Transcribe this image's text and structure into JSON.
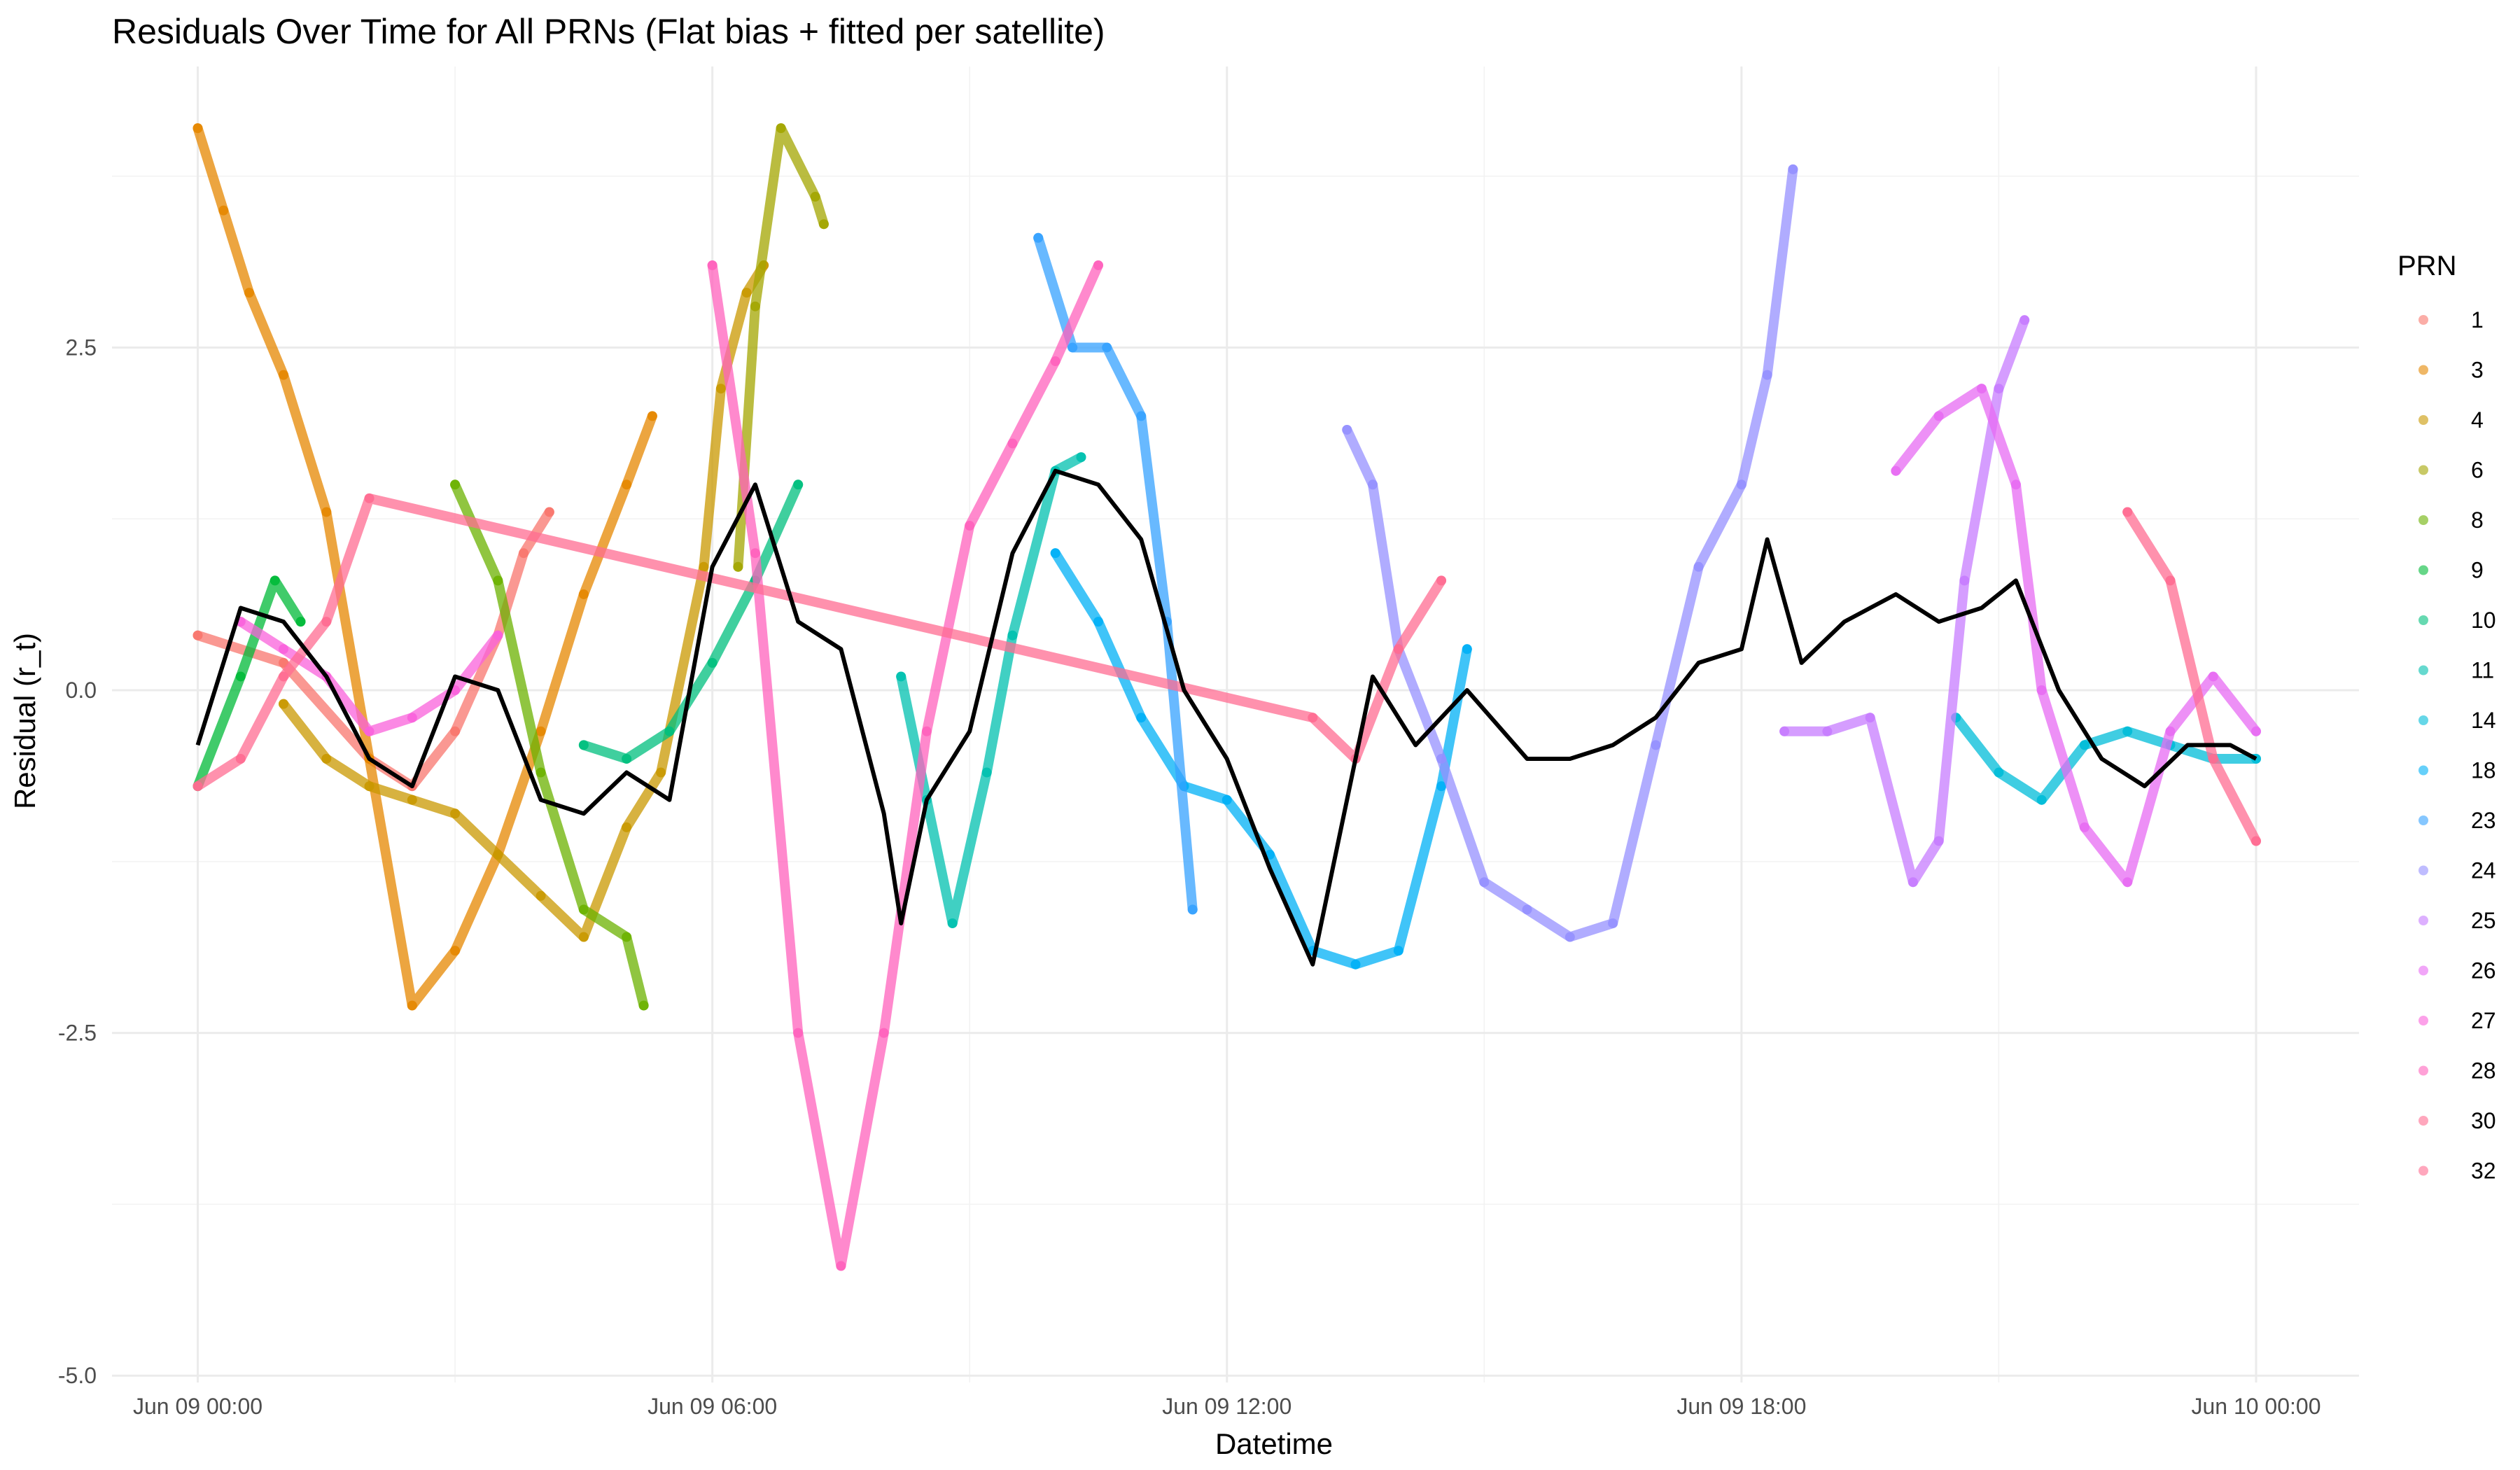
{
  "chart_data": {
    "type": "scatter",
    "title": "Residuals Over Time for All PRNs (Flat bias + fitted per satellite)",
    "xlabel": "Datetime",
    "ylabel": "Residual (r_t)",
    "x_tick_labels": [
      "Jun 09 00:00",
      "Jun 09 06:00",
      "Jun 09 12:00",
      "Jun 09 18:00",
      "Jun 10 00:00"
    ],
    "x_ticks_hours": [
      0,
      6,
      12,
      18,
      24
    ],
    "y_ticks": [
      -5.0,
      -2.5,
      0.0,
      2.5
    ],
    "y_tick_labels": [
      "-5.0",
      "-2.5",
      "0.0",
      "2.5"
    ],
    "xlim_hours": [
      -1,
      25.2
    ],
    "ylim": [
      -5.05,
      4.55
    ],
    "grid": true,
    "legend": {
      "title": "PRN",
      "position": "right"
    },
    "series": [
      {
        "name": "1",
        "color": "#F8766D",
        "points": [
          [
            0,
            0.4
          ],
          [
            1,
            0.2
          ],
          [
            2,
            -0.5
          ],
          [
            2.5,
            -0.7
          ],
          [
            3,
            -0.3
          ],
          [
            3.5,
            0.4
          ],
          [
            3.8,
            1.0
          ],
          [
            4.1,
            1.3
          ]
        ]
      },
      {
        "name": "3",
        "color": "#E58700",
        "points": [
          [
            0,
            4.1
          ],
          [
            0.3,
            3.5
          ],
          [
            0.6,
            2.9
          ],
          [
            1,
            2.3
          ],
          [
            1.5,
            1.3
          ],
          [
            2,
            -0.5
          ],
          [
            2.5,
            -2.3
          ],
          [
            3,
            -1.9
          ],
          [
            3.5,
            -1.2
          ],
          [
            4,
            -0.3
          ],
          [
            4.5,
            0.7
          ],
          [
            5,
            1.5
          ],
          [
            5.3,
            2.0
          ]
        ]
      },
      {
        "name": "4",
        "color": "#C99800",
        "points": [
          [
            1,
            -0.1
          ],
          [
            1.5,
            -0.5
          ],
          [
            2,
            -0.7
          ],
          [
            2.5,
            -0.8
          ],
          [
            3,
            -0.9
          ],
          [
            3.5,
            -1.2
          ],
          [
            4,
            -1.5
          ],
          [
            4.5,
            -1.8
          ],
          [
            5,
            -1.0
          ],
          [
            5.4,
            -0.6
          ],
          [
            5.9,
            0.9
          ],
          [
            6.1,
            2.2
          ],
          [
            6.4,
            2.9
          ],
          [
            6.6,
            3.1
          ]
        ]
      },
      {
        "name": "6",
        "color": "#A3A500",
        "points": [
          [
            6.3,
            0.9
          ],
          [
            6.5,
            2.8
          ],
          [
            6.8,
            4.1
          ],
          [
            7.2,
            3.6
          ],
          [
            7.3,
            3.4
          ]
        ]
      },
      {
        "name": "8",
        "color": "#6BB100",
        "points": [
          [
            3,
            1.5
          ],
          [
            3.5,
            0.8
          ],
          [
            4,
            -0.6
          ],
          [
            4.5,
            -1.6
          ],
          [
            5,
            -1.8
          ],
          [
            5.2,
            -2.3
          ]
        ]
      },
      {
        "name": "9",
        "color": "#00BA38",
        "points": [
          [
            0,
            -0.7
          ],
          [
            0.5,
            0.1
          ],
          [
            0.9,
            0.8
          ],
          [
            1.2,
            0.5
          ]
        ]
      },
      {
        "name": "10",
        "color": "#00BF7D",
        "points": [
          [
            4.5,
            -0.4
          ],
          [
            5,
            -0.5
          ],
          [
            5.5,
            -0.3
          ],
          [
            6,
            0.2
          ],
          [
            6.5,
            0.8
          ],
          [
            7,
            1.5
          ]
        ]
      },
      {
        "name": "11",
        "color": "#00C0AF",
        "points": [
          [
            8.2,
            0.1
          ],
          [
            8.5,
            -0.8
          ],
          [
            8.8,
            -1.7
          ],
          [
            9.2,
            -0.6
          ],
          [
            9.5,
            0.4
          ],
          [
            10,
            1.6
          ],
          [
            10.3,
            1.7
          ]
        ]
      },
      {
        "name": "14",
        "color": "#00BCD8",
        "points": [
          [
            20.5,
            -0.2
          ],
          [
            21,
            -0.6
          ],
          [
            21.5,
            -0.8
          ],
          [
            22,
            -0.4
          ],
          [
            22.5,
            -0.3
          ],
          [
            23,
            -0.4
          ],
          [
            23.5,
            -0.5
          ],
          [
            24,
            -0.5
          ]
        ]
      },
      {
        "name": "18",
        "color": "#00B0F6",
        "points": [
          [
            10,
            1.0
          ],
          [
            10.5,
            0.5
          ],
          [
            11,
            -0.2
          ],
          [
            11.5,
            -0.7
          ],
          [
            12,
            -0.8
          ],
          [
            12.5,
            -1.2
          ],
          [
            13,
            -1.9
          ],
          [
            13.5,
            -2.0
          ],
          [
            14,
            -1.9
          ],
          [
            14.5,
            -0.7
          ],
          [
            14.8,
            0.3
          ]
        ]
      },
      {
        "name": "23",
        "color": "#35A2FF",
        "points": [
          [
            9.8,
            3.3
          ],
          [
            10.2,
            2.5
          ],
          [
            10.6,
            2.5
          ],
          [
            11,
            2.0
          ],
          [
            11.3,
            0.5
          ],
          [
            11.6,
            -1.6
          ]
        ]
      },
      {
        "name": "24",
        "color": "#9590FF",
        "points": [
          [
            13.4,
            1.9
          ],
          [
            13.7,
            1.5
          ],
          [
            14,
            0.3
          ],
          [
            14.5,
            -0.5
          ],
          [
            15,
            -1.4
          ],
          [
            15.5,
            -1.6
          ],
          [
            16,
            -1.8
          ],
          [
            16.5,
            -1.7
          ],
          [
            17,
            -0.4
          ],
          [
            17.5,
            0.9
          ],
          [
            18,
            1.5
          ],
          [
            18.3,
            2.3
          ],
          [
            18.6,
            3.8
          ]
        ]
      },
      {
        "name": "25",
        "color": "#C77CFF",
        "points": [
          [
            18.5,
            -0.3
          ],
          [
            19,
            -0.3
          ],
          [
            19.5,
            -0.2
          ],
          [
            20,
            -1.4
          ],
          [
            20.3,
            -1.1
          ],
          [
            20.6,
            0.8
          ],
          [
            21,
            2.2
          ],
          [
            21.3,
            2.7
          ]
        ]
      },
      {
        "name": "26",
        "color": "#E76BF3",
        "points": [
          [
            19.8,
            1.6
          ],
          [
            20.3,
            2.0
          ],
          [
            20.8,
            2.2
          ],
          [
            21.2,
            1.5
          ],
          [
            21.5,
            0.0
          ],
          [
            22,
            -1.0
          ],
          [
            22.5,
            -1.4
          ],
          [
            23,
            -0.3
          ],
          [
            23.5,
            0.1
          ],
          [
            24,
            -0.3
          ]
        ]
      },
      {
        "name": "27",
        "color": "#FA62DB",
        "points": [
          [
            0.5,
            0.5
          ],
          [
            1,
            0.3
          ],
          [
            1.5,
            0.1
          ],
          [
            2,
            -0.3
          ],
          [
            2.5,
            -0.2
          ],
          [
            3,
            0.0
          ],
          [
            3.5,
            0.4
          ]
        ]
      },
      {
        "name": "28",
        "color": "#FF62BC",
        "points": [
          [
            6,
            3.1
          ],
          [
            6.5,
            1.0
          ],
          [
            7,
            -2.5
          ],
          [
            7.5,
            -4.2
          ],
          [
            8,
            -2.5
          ],
          [
            8.5,
            -0.3
          ],
          [
            9,
            1.2
          ],
          [
            9.5,
            1.8
          ],
          [
            10,
            2.4
          ],
          [
            10.5,
            3.1
          ]
        ]
      },
      {
        "name": "30",
        "color": "#FF6C91",
        "points": [
          [
            0,
            -0.7
          ],
          [
            0.5,
            -0.5
          ],
          [
            1,
            0.1
          ],
          [
            1.5,
            0.5
          ],
          [
            2,
            1.4
          ],
          [
            13,
            -0.2
          ],
          [
            13.5,
            -0.5
          ],
          [
            14,
            0.3
          ],
          [
            14.5,
            0.8
          ]
        ]
      },
      {
        "name": "32",
        "color": "#FF6C91",
        "points": [
          [
            22.5,
            1.3
          ],
          [
            23,
            0.8
          ],
          [
            23.5,
            -0.5
          ],
          [
            24,
            -1.1
          ]
        ]
      },
      {
        "name": "",
        "color": "#000000",
        "line": true,
        "points": [
          [
            0,
            -0.4
          ],
          [
            0.5,
            0.6
          ],
          [
            1,
            0.5
          ],
          [
            1.5,
            0.1
          ],
          [
            2,
            -0.5
          ],
          [
            2.5,
            -0.7
          ],
          [
            3,
            0.1
          ],
          [
            3.5,
            0.0
          ],
          [
            4,
            -0.8
          ],
          [
            4.5,
            -0.9
          ],
          [
            5,
            -0.6
          ],
          [
            5.5,
            -0.8
          ],
          [
            6,
            0.9
          ],
          [
            6.5,
            1.5
          ],
          [
            7,
            0.5
          ],
          [
            7.5,
            0.3
          ],
          [
            8,
            -0.9
          ],
          [
            8.2,
            -1.7
          ],
          [
            8.5,
            -0.8
          ],
          [
            9,
            -0.3
          ],
          [
            9.5,
            1.0
          ],
          [
            10,
            1.6
          ],
          [
            10.5,
            1.5
          ],
          [
            11,
            1.1
          ],
          [
            11.5,
            0.0
          ],
          [
            12,
            -0.5
          ],
          [
            12.5,
            -1.3
          ],
          [
            13,
            -2.0
          ],
          [
            13.3,
            -1.1
          ],
          [
            13.7,
            0.1
          ],
          [
            14.2,
            -0.4
          ],
          [
            14.8,
            0.0
          ],
          [
            15.5,
            -0.5
          ],
          [
            16,
            -0.5
          ],
          [
            16.5,
            -0.4
          ],
          [
            17,
            -0.2
          ],
          [
            17.5,
            0.2
          ],
          [
            18,
            0.3
          ],
          [
            18.3,
            1.1
          ],
          [
            18.7,
            0.2
          ],
          [
            19.2,
            0.5
          ],
          [
            19.8,
            0.7
          ],
          [
            20.3,
            0.5
          ],
          [
            20.8,
            0.6
          ],
          [
            21.2,
            0.8
          ],
          [
            21.7,
            0.0
          ],
          [
            22.2,
            -0.5
          ],
          [
            22.7,
            -0.7
          ],
          [
            23.2,
            -0.4
          ],
          [
            23.7,
            -0.4
          ],
          [
            24,
            -0.5
          ]
        ]
      }
    ]
  }
}
